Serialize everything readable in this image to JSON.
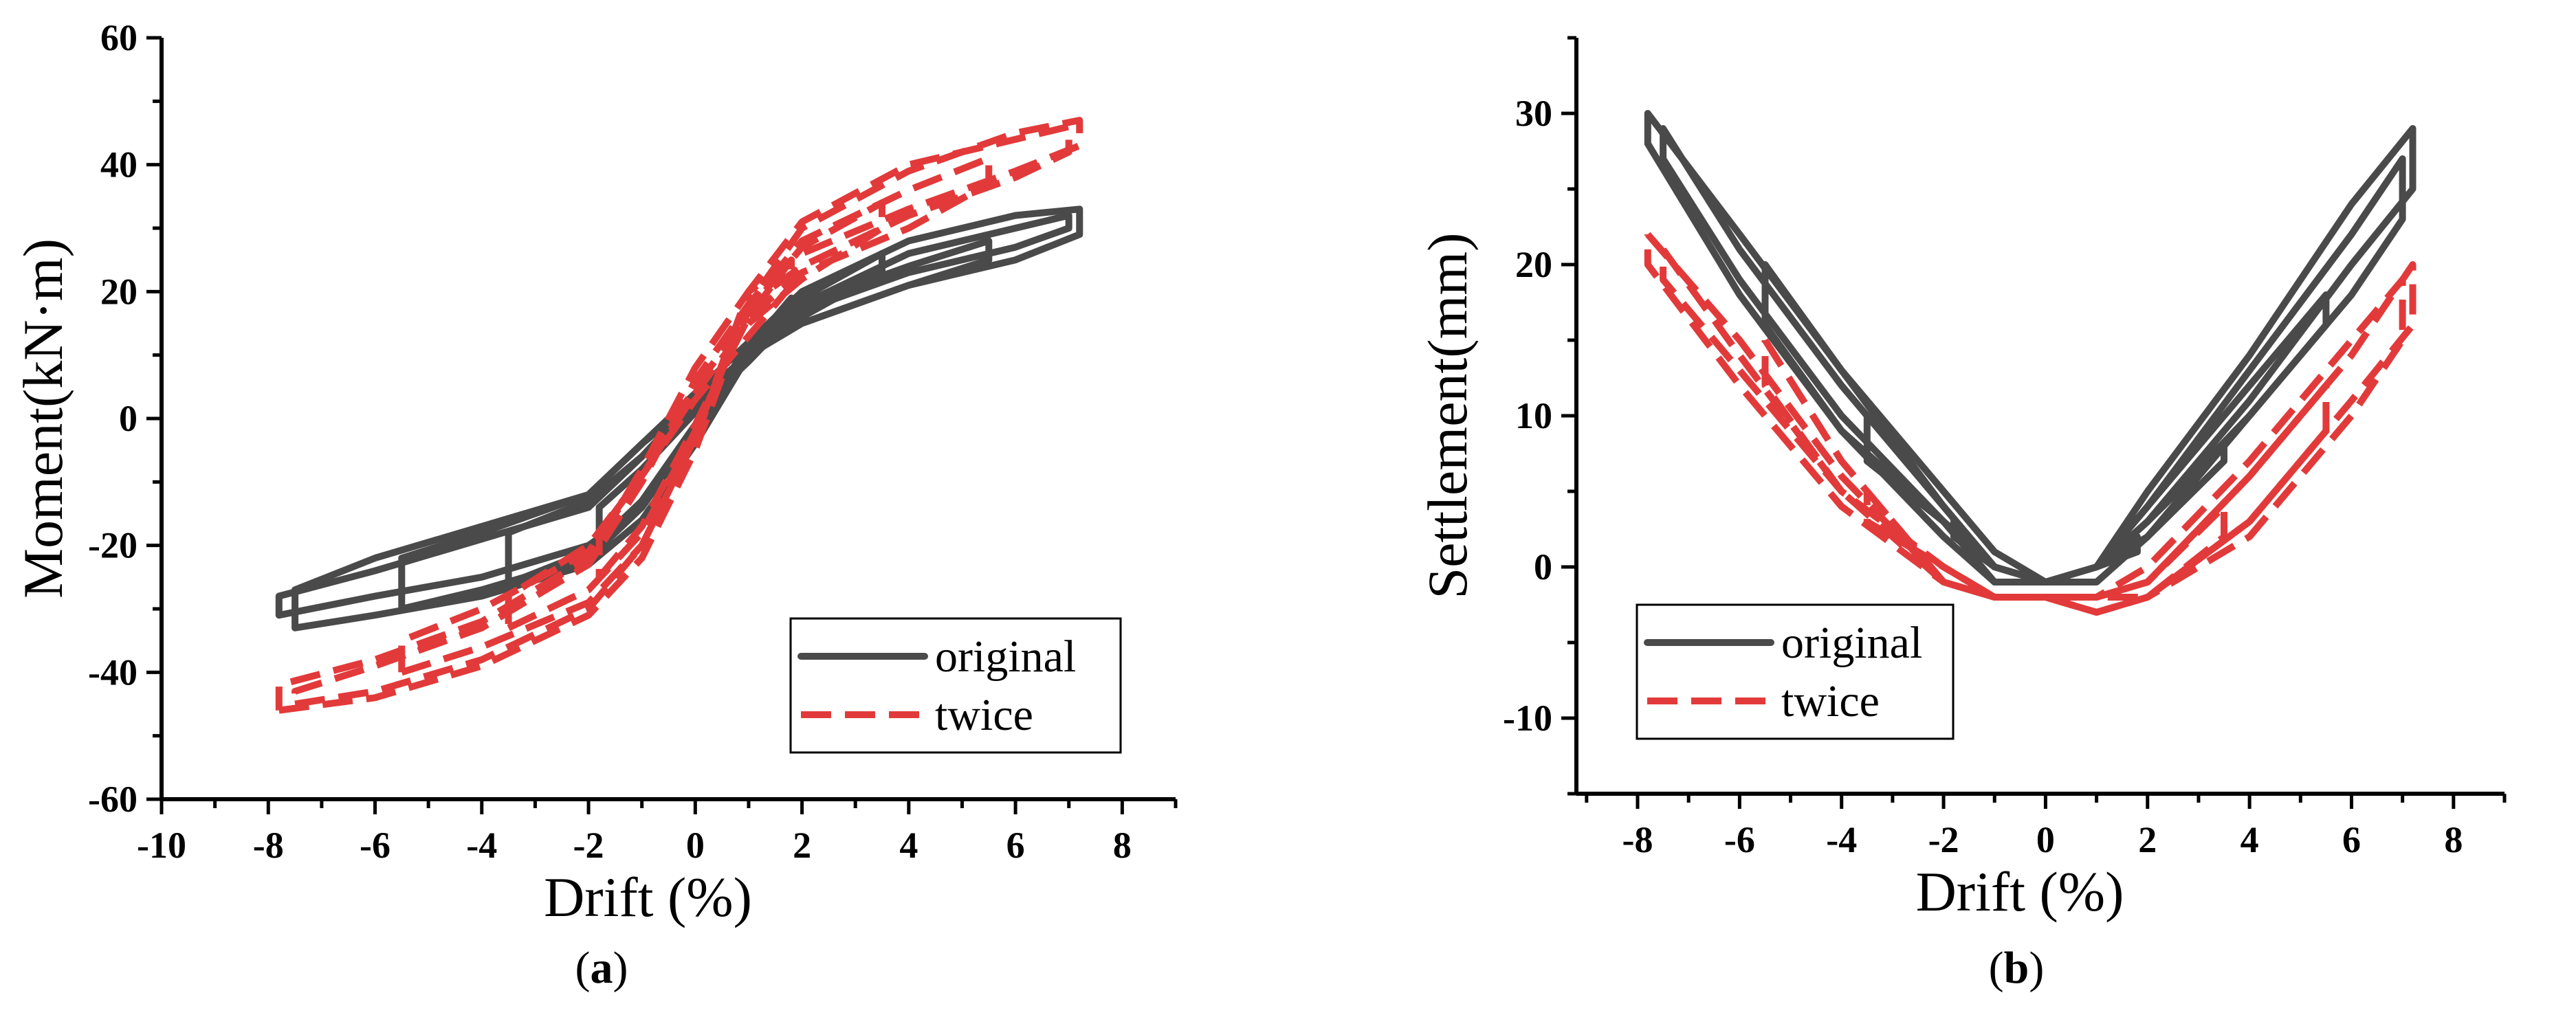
{
  "colors": {
    "original": "#4a4a4a",
    "twice": "#e23a3a"
  },
  "chart_data": [
    {
      "id": "a",
      "type": "line",
      "caption_letter": "a",
      "caption_open": "(",
      "caption_close": ")",
      "xlabel": "Drift (%)",
      "ylabel": "Moment(kN·m)",
      "xlim": [
        -10,
        9
      ],
      "ylim": [
        -60,
        60
      ],
      "xticks": [
        -10,
        -8,
        -6,
        -4,
        -2,
        0,
        2,
        4,
        6,
        8
      ],
      "yticks": [
        -60,
        -40,
        -20,
        0,
        20,
        40,
        60
      ],
      "legend_position": "bottom-right",
      "series": [
        {
          "name": "original",
          "style": "solid",
          "loops": [
            {
              "peak": 7.2,
              "x": [
                -7.8,
                -6,
                -4,
                -2,
                -1,
                0,
                1,
                2,
                4,
                6,
                7.2,
                7.2,
                6,
                4,
                2,
                1,
                0,
                -1,
                -2,
                -4,
                -6,
                -7.8,
                -7.8
              ],
              "y": [
                -31,
                -28,
                -25,
                -20,
                -14,
                -2,
                12,
                20,
                28,
                32,
                33,
                29,
                25,
                21,
                15,
                10,
                3,
                -6,
                -14,
                -19,
                -24,
                -28,
                -31
              ]
            },
            {
              "peak": 7.0,
              "x": [
                -7.5,
                -6,
                -4,
                -2,
                -1,
                0,
                1,
                2,
                4,
                6,
                7,
                7,
                6,
                4,
                2,
                1,
                0,
                -1,
                -2,
                -4,
                -6,
                -7.5,
                -7.5
              ],
              "y": [
                -33,
                -31,
                -28,
                -23,
                -16,
                -4,
                10,
                18,
                26,
                30,
                32,
                30,
                27,
                23,
                17,
                12,
                4,
                -4,
                -12,
                -17,
                -22,
                -27,
                -33
              ]
            },
            {
              "peak": 5.5,
              "x": [
                -5.5,
                -4,
                -2,
                -1,
                0,
                1,
                2,
                4,
                5.5,
                5.5,
                4,
                2,
                1,
                0,
                -1,
                -2,
                -4,
                -5.5,
                -5.5
              ],
              "y": [
                -30,
                -27,
                -22,
                -14,
                -2,
                10,
                18,
                24,
                28,
                25,
                21,
                15,
                10,
                3,
                -4,
                -12,
                -18,
                -22,
                -30
              ]
            },
            {
              "peak": 3.5,
              "x": [
                -3.5,
                -2,
                -1,
                0,
                1,
                2,
                3.5,
                3.5,
                2,
                1,
                0,
                -1,
                -2,
                -3.5,
                -3.5
              ],
              "y": [
                -26,
                -21,
                -13,
                -1,
                11,
                19,
                26,
                23,
                16,
                10,
                2,
                -6,
                -13,
                -18,
                -26
              ]
            },
            {
              "peak": 1.8,
              "x": [
                -1.8,
                -1,
                0,
                1,
                1.8,
                1.8,
                1,
                0,
                -1,
                -1.8,
                -1.8
              ],
              "y": [
                -20,
                -13,
                -1,
                11,
                19,
                16,
                9,
                1,
                -8,
                -14,
                -20
              ]
            }
          ]
        },
        {
          "name": "twice",
          "style": "dashed",
          "loops": [
            {
              "peak": 7.2,
              "x": [
                -7.8,
                -6,
                -4,
                -2,
                -1,
                0,
                1,
                2,
                4,
                6,
                7.2,
                7.2,
                6,
                4,
                2,
                1,
                0,
                -1,
                -2,
                -4,
                -6,
                -7.8,
                -7.8
              ],
              "y": [
                -46,
                -44,
                -39,
                -31,
                -22,
                -5,
                18,
                30,
                39,
                45,
                47,
                43,
                39,
                33,
                26,
                20,
                8,
                -8,
                -22,
                -32,
                -38,
                -42,
                -46
              ]
            },
            {
              "peak": 7.0,
              "x": [
                -7.5,
                -6,
                -4,
                -2,
                -1,
                0,
                1,
                2,
                4,
                6,
                7,
                7,
                6,
                4,
                2,
                1,
                0,
                -1,
                -2,
                -4,
                -6,
                -7.5,
                -7.5
              ],
              "y": [
                -45,
                -43,
                -38,
                -30,
                -20,
                -3,
                20,
                31,
                40,
                44,
                46,
                42,
                38,
                32,
                24,
                18,
                6,
                -10,
                -23,
                -33,
                -39,
                -43,
                -45
              ]
            },
            {
              "peak": 5.5,
              "x": [
                -5.5,
                -4,
                -2,
                -1,
                0,
                1,
                2,
                4,
                5.5,
                5.5,
                4,
                2,
                1,
                0,
                -1,
                -2,
                -4,
                -5.5,
                -5.5
              ],
              "y": [
                -40,
                -36,
                -29,
                -20,
                -3,
                18,
                28,
                36,
                41,
                37,
                30,
                23,
                16,
                5,
                -9,
                -21,
                -30,
                -35,
                -40
              ]
            },
            {
              "peak": 3.5,
              "x": [
                -3.5,
                -2,
                -1,
                0,
                1,
                2,
                3.5,
                3.5,
                2,
                1,
                0,
                -1,
                -2,
                -3.5,
                -3.5
              ],
              "y": [
                -33,
                -27,
                -18,
                -2,
                17,
                27,
                34,
                30,
                22,
                15,
                4,
                -9,
                -20,
                -28,
                -33
              ]
            },
            {
              "peak": 1.8,
              "x": [
                -1.8,
                -1,
                0,
                1,
                1.8,
                1.8,
                1,
                0,
                -1,
                -1.8,
                -1.8
              ],
              "y": [
                -25,
                -17,
                -1,
                16,
                25,
                21,
                13,
                3,
                -9,
                -18,
                -25
              ]
            }
          ]
        }
      ]
    },
    {
      "id": "b",
      "type": "line",
      "caption_letter": "b",
      "caption_open": "(",
      "caption_close": ")",
      "xlabel": "Drift (%)",
      "ylabel": "Settlement(mm)",
      "xlim": [
        -9.2,
        9
      ],
      "ylim": [
        -15,
        35
      ],
      "xticks": [
        -8,
        -6,
        -4,
        -2,
        0,
        2,
        4,
        6,
        8
      ],
      "yticks": [
        -10,
        0,
        10,
        20,
        30
      ],
      "legend_position": "bottom-left",
      "series": [
        {
          "name": "original",
          "style": "solid",
          "loops": [
            {
              "peak": 7.8,
              "x": [
                -7.8,
                -6,
                -4,
                -2,
                -1,
                0,
                1,
                2,
                4,
                6,
                7.2,
                7.2,
                6,
                4,
                2,
                1,
                0,
                -1,
                -2,
                -4,
                -6,
                -7.8,
                -7.8
              ],
              "y": [
                30,
                22,
                13,
                5,
                1,
                -1,
                0,
                5,
                14,
                24,
                29,
                25,
                20,
                11,
                3,
                0,
                -1,
                -1,
                2,
                9,
                18,
                28,
                30
              ]
            },
            {
              "peak": 7.5,
              "x": [
                -7.5,
                -6,
                -4,
                -2,
                -1,
                0,
                1,
                2,
                4,
                6,
                7,
                7,
                6,
                4,
                2,
                1,
                0,
                -1,
                -2,
                -4,
                -6,
                -7.5,
                -7.5
              ],
              "y": [
                29,
                21,
                12,
                4,
                0,
                -1,
                0,
                4,
                13,
                22,
                27,
                23,
                18,
                10,
                2,
                -1,
                -1,
                0,
                3,
                10,
                19,
                27,
                29
              ]
            },
            {
              "peak": 5.5,
              "x": [
                -5.5,
                -4,
                -2,
                -1,
                0,
                1,
                2,
                4,
                5.5,
                5.5,
                4,
                2,
                1,
                0,
                -1,
                -2,
                -4,
                -5.5,
                -5.5
              ],
              "y": [
                20,
                13,
                4,
                0,
                -1,
                0,
                4,
                12,
                18,
                16,
                10,
                3,
                0,
                -1,
                -1,
                3,
                9,
                16,
                20
              ]
            },
            {
              "peak": 3.5,
              "x": [
                -3.5,
                -2,
                -1,
                0,
                1,
                2,
                3.5,
                3.5,
                2,
                1,
                0,
                -1,
                -2,
                -3.5,
                -3.5
              ],
              "y": [
                10,
                4,
                0,
                -1,
                0,
                3,
                8,
                7,
                2,
                0,
                -1,
                0,
                3,
                7,
                10
              ]
            },
            {
              "peak": 1.8,
              "x": [
                -1.8,
                -1,
                0,
                1,
                1.8,
                1.8,
                1,
                0,
                -1,
                -1.8,
                -1.8
              ],
              "y": [
                3,
                0,
                -1,
                0,
                2,
                1,
                0,
                -1,
                0,
                2,
                3
              ]
            }
          ]
        },
        {
          "name": "twice",
          "style": "dashed",
          "loops": [
            {
              "peak": 7.8,
              "x": [
                -7.8,
                -6,
                -4,
                -2,
                -1,
                0,
                1,
                2,
                4,
                6,
                7.2,
                7.2,
                6,
                4,
                2,
                1,
                0,
                -1,
                -2,
                -4,
                -6,
                -7.8,
                -7.8
              ],
              "y": [
                22,
                15,
                6,
                -1,
                -2,
                -2,
                -2,
                -1,
                6,
                14,
                20,
                16,
                11,
                3,
                -2,
                -3,
                -2,
                -2,
                -1,
                4,
                12,
                20,
                22
              ]
            },
            {
              "peak": 7.5,
              "x": [
                -7.5,
                -6,
                -4,
                -2,
                -1,
                0,
                1,
                2,
                4,
                6,
                7,
                7,
                6,
                4,
                2,
                1,
                0,
                -1,
                -2,
                -4,
                -6,
                -7.5,
                -7.5
              ],
              "y": [
                21,
                14,
                5,
                -1,
                -2,
                -2,
                -2,
                0,
                7,
                15,
                19,
                15,
                10,
                2,
                -2,
                -3,
                -2,
                -2,
                0,
                5,
                13,
                19,
                21
              ]
            },
            {
              "peak": 5.5,
              "x": [
                -5.5,
                -4,
                -2,
                -1,
                0,
                1,
                2,
                4,
                5.5,
                5.5,
                4,
                2,
                1,
                0,
                -1,
                -2,
                -4,
                -5.5,
                -5.5
              ],
              "y": [
                15,
                7,
                -1,
                -2,
                -2,
                -2,
                -1,
                6,
                12,
                9,
                3,
                -2,
                -3,
                -2,
                -2,
                0,
                5,
                12,
                15
              ]
            },
            {
              "peak": 3.5,
              "x": [
                -3.5,
                -2,
                -1,
                0,
                1,
                2,
                3.5,
                3.5,
                2,
                1,
                0,
                -1,
                -2,
                -3.5,
                -3.5
              ],
              "y": [
                5,
                -1,
                -2,
                -2,
                -2,
                -1,
                4,
                2,
                -2,
                -2,
                -2,
                -2,
                0,
                3,
                5
              ]
            }
          ]
        }
      ]
    }
  ],
  "legend": {
    "original_label": "original",
    "twice_label": "twice"
  }
}
